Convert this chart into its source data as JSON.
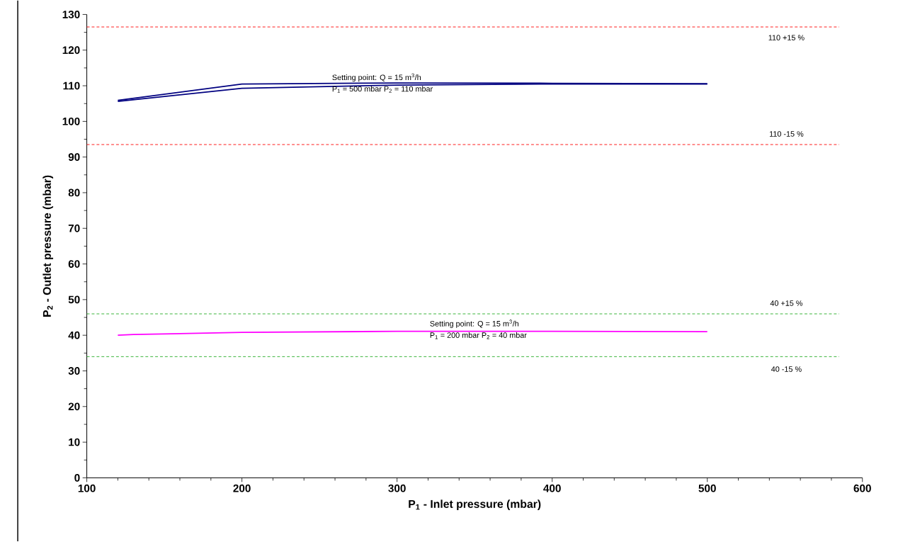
{
  "chart_data": {
    "type": "line",
    "xlabel": "P$_{1}$ - Inlet pressure (mbar)",
    "ylabel": "P$_{2}$ - Outlet pressure (mbar)",
    "xlim": [
      100,
      600
    ],
    "xticks": [
      100,
      200,
      300,
      400,
      500,
      600
    ],
    "ylim": [
      0,
      130
    ],
    "yticks": [
      0,
      10,
      20,
      30,
      40,
      50,
      60,
      70,
      80,
      90,
      100,
      110,
      120,
      130
    ],
    "series": [
      {
        "color": "#000080",
        "x": [
          120,
          200,
          300,
          400,
          500
        ],
        "values": [
          105.9,
          110.5,
          110.8,
          110.7,
          110.6
        ]
      },
      {
        "color": "#000080",
        "x": [
          120,
          200,
          300,
          400,
          500
        ],
        "values": [
          105.6,
          109.3,
          110.2,
          110.5,
          110.5
        ]
      },
      {
        "color": "#ff00ff",
        "x": [
          120,
          130,
          200,
          300,
          400,
          500
        ],
        "values": [
          40.0,
          40.2,
          40.8,
          41.1,
          41.1,
          41.0
        ]
      }
    ],
    "ref_lines": [
      {
        "axis": "y",
        "value": 126.5,
        "color": "#ff0000",
        "line_style": "dashed"
      },
      {
        "axis": "y",
        "value": 93.5,
        "color": "#ff0000",
        "line_style": "dashed"
      },
      {
        "axis": "y",
        "value": 46,
        "color": "#22aa22",
        "line_style": "dashed"
      },
      {
        "axis": "y",
        "value": 34,
        "color": "#22aa22",
        "line_style": "dashed"
      }
    ],
    "annotations": [
      "Setting point: Q = 15 m$^{3}$/h",
      "P$_{1}$ = 500 mbar    P$_{2}$ = 110 mbar",
      "Setting point: Q = 15 m$^{3}$/h",
      "P$_{1}$ = 200 mbar    P$_{2}$ = 40 mbar",
      "110   +15 %",
      "110   -15 %",
      "40   +15 %",
      "40   -15 %"
    ]
  }
}
